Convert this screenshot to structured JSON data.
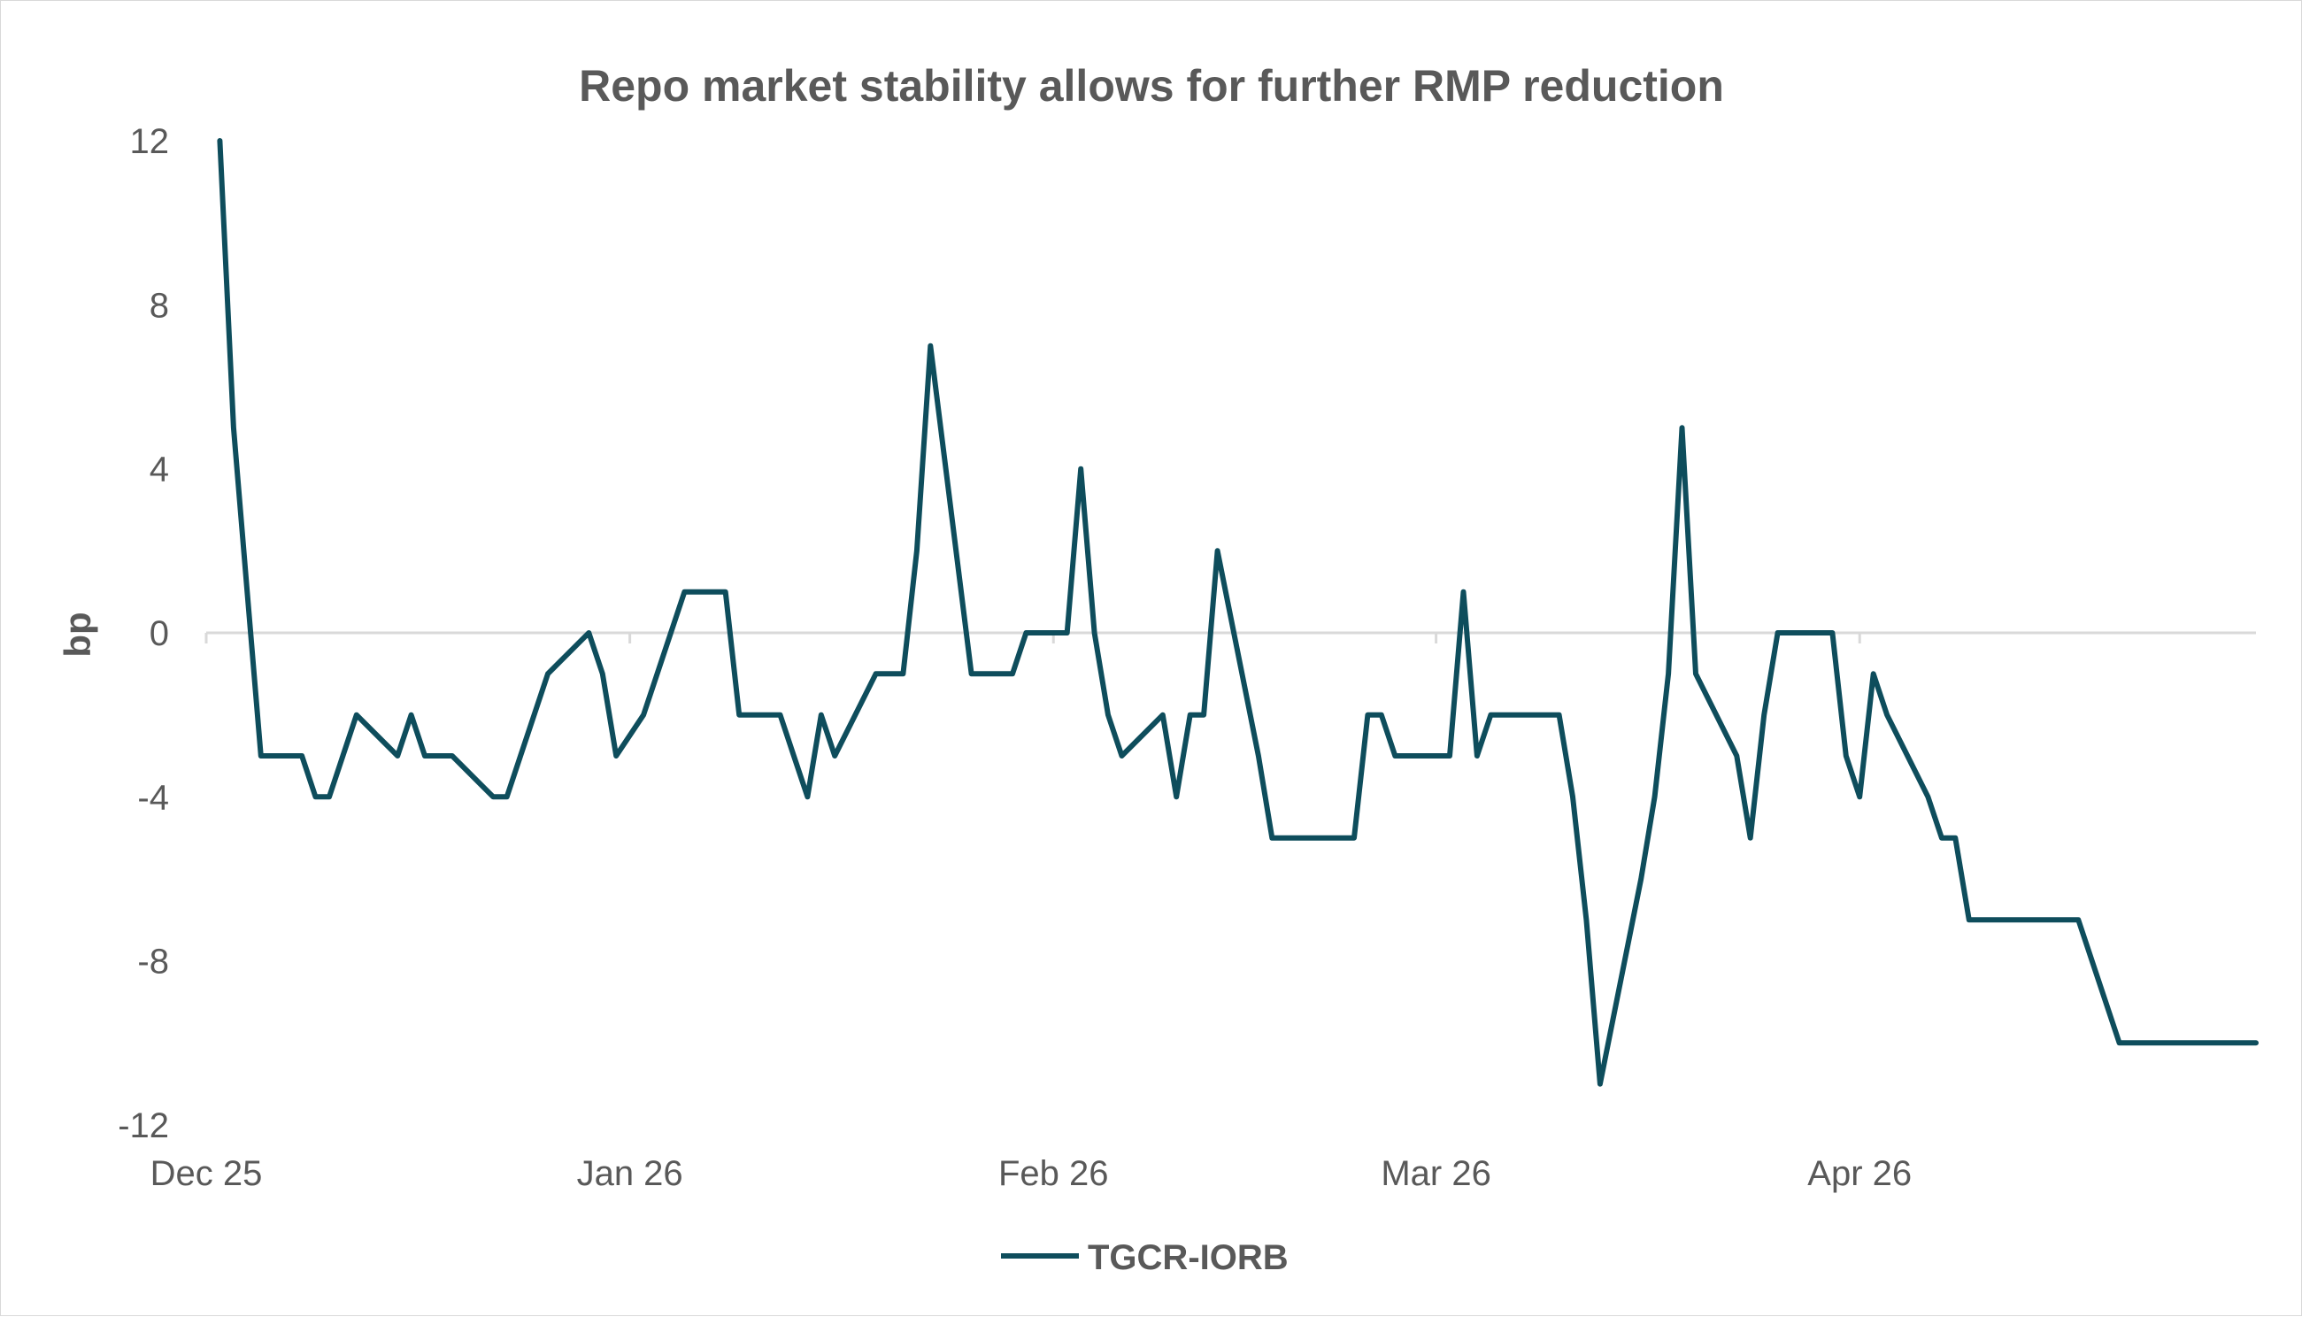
{
  "chart_data": {
    "type": "line",
    "title": "Repo market stability allows for further RMP reduction",
    "ylabel": "bp",
    "ylim": [
      -12,
      12
    ],
    "yticks": [
      12,
      8,
      4,
      0,
      -4,
      -8,
      -12
    ],
    "ytick_labels": [
      "12",
      "8",
      "4",
      "0",
      "-4",
      "-8",
      "-12"
    ],
    "xlim": [
      "2025-12-01",
      "2026-04-30"
    ],
    "xticks": [
      "2025-12-01",
      "2026-01-01",
      "2026-02-01",
      "2026-03-01",
      "2026-04-01"
    ],
    "xtick_labels": [
      "Dec 25",
      "Jan 26",
      "Feb 26",
      "Mar 26",
      "Apr 26"
    ],
    "grid": false,
    "legend_position": "bottom",
    "colors": {
      "series": "#0e4d5c",
      "axis": "#d9d9d9",
      "text": "#595959"
    },
    "series": [
      {
        "name": "TGCR-IORB",
        "x": [
          "2025-12-02",
          "2025-12-03",
          "2025-12-04",
          "2025-12-05",
          "2025-12-08",
          "2025-12-09",
          "2025-12-10",
          "2025-12-11",
          "2025-12-12",
          "2025-12-15",
          "2025-12-16",
          "2025-12-17",
          "2025-12-18",
          "2025-12-19",
          "2025-12-22",
          "2025-12-23",
          "2025-12-24",
          "2025-12-26",
          "2025-12-29",
          "2025-12-30",
          "2025-12-31",
          "2026-01-02",
          "2026-01-05",
          "2026-01-06",
          "2026-01-07",
          "2026-01-08",
          "2026-01-09",
          "2026-01-12",
          "2026-01-13",
          "2026-01-14",
          "2026-01-15",
          "2026-01-16",
          "2026-01-19",
          "2026-01-20",
          "2026-01-21",
          "2026-01-22",
          "2026-01-23",
          "2026-01-26",
          "2026-01-27",
          "2026-01-28",
          "2026-01-29",
          "2026-01-30",
          "2026-02-02",
          "2026-02-03",
          "2026-02-04",
          "2026-02-05",
          "2026-02-06",
          "2026-02-09",
          "2026-02-10",
          "2026-02-11",
          "2026-02-12",
          "2026-02-13",
          "2026-02-16",
          "2026-02-17",
          "2026-02-18",
          "2026-02-19",
          "2026-02-20",
          "2026-02-23",
          "2026-02-24",
          "2026-02-25",
          "2026-02-26",
          "2026-02-27",
          "2026-03-02",
          "2026-03-03",
          "2026-03-04",
          "2026-03-05",
          "2026-03-06",
          "2026-03-09",
          "2026-03-10",
          "2026-03-11",
          "2026-03-12",
          "2026-03-13",
          "2026-03-16",
          "2026-03-17",
          "2026-03-18",
          "2026-03-19",
          "2026-03-20",
          "2026-03-23",
          "2026-03-24",
          "2026-03-25",
          "2026-03-26",
          "2026-03-27",
          "2026-03-30",
          "2026-03-31",
          "2026-04-01",
          "2026-04-02",
          "2026-04-03",
          "2026-04-06",
          "2026-04-07",
          "2026-04-08",
          "2026-04-09",
          "2026-04-10",
          "2026-04-13",
          "2026-04-14",
          "2026-04-15",
          "2026-04-16",
          "2026-04-17",
          "2026-04-20",
          "2026-04-21",
          "2026-04-22",
          "2026-04-23",
          "2026-04-24",
          "2026-04-27",
          "2026-04-28",
          "2026-04-29",
          "2026-04-30"
        ],
        "values": [
          12,
          5,
          1,
          -3,
          -3,
          -4,
          -4,
          -3,
          -2,
          -3,
          -2,
          -3,
          -3,
          -3,
          -4,
          -4,
          -3,
          -1,
          0,
          -1,
          -3,
          -2,
          1,
          1,
          1,
          1,
          -2,
          -2,
          -3,
          -4,
          -2,
          -3,
          -1,
          -1,
          -1,
          2,
          7,
          -1,
          -1,
          -1,
          -1,
          0,
          0,
          4,
          0,
          -2,
          -3,
          -2,
          -4,
          -2,
          -2,
          2,
          -3,
          -5,
          -5,
          -5,
          -5,
          -5,
          -2,
          -2,
          -3,
          -3,
          -3,
          1,
          -3,
          -2,
          -2,
          -2,
          -2,
          -4,
          -7,
          -11,
          -6,
          -4,
          -1,
          5,
          -1,
          -3,
          -5,
          -2,
          0,
          0,
          0,
          -3,
          -4,
          -1,
          -2,
          -4,
          -5,
          -5,
          -7,
          -7,
          -7,
          -7,
          -7,
          -7,
          -7,
          -10,
          -10,
          -10,
          -10,
          -10,
          -10,
          -10,
          -10,
          -10
        ]
      }
    ]
  }
}
